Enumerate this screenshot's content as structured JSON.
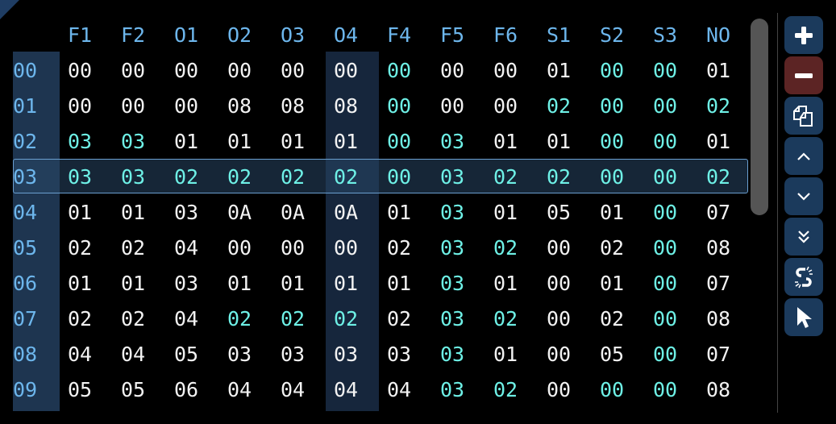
{
  "columns": [
    "F1",
    "F2",
    "O1",
    "O2",
    "O3",
    "O4",
    "F4",
    "F5",
    "F6",
    "S1",
    "S2",
    "S3",
    "NO"
  ],
  "selected_row": "03",
  "highlighted_column": "O4",
  "colors": {
    "header": "#6db6ec",
    "highlight": "#6ef0e6",
    "normal": "#f2f2f2",
    "remove_button": "#5c2424",
    "button": "#1b3a5c"
  },
  "rows": [
    {
      "id": "00",
      "values": [
        "00",
        "00",
        "00",
        "00",
        "00",
        "00",
        "00",
        "00",
        "00",
        "01",
        "00",
        "00",
        "01"
      ],
      "hl": [
        0,
        0,
        0,
        0,
        0,
        0,
        1,
        0,
        0,
        0,
        1,
        1,
        0
      ]
    },
    {
      "id": "01",
      "values": [
        "00",
        "00",
        "00",
        "08",
        "08",
        "08",
        "00",
        "00",
        "00",
        "02",
        "00",
        "00",
        "02"
      ],
      "hl": [
        0,
        0,
        0,
        0,
        0,
        0,
        1,
        0,
        0,
        1,
        1,
        1,
        1
      ]
    },
    {
      "id": "02",
      "values": [
        "03",
        "03",
        "01",
        "01",
        "01",
        "01",
        "00",
        "03",
        "01",
        "01",
        "00",
        "00",
        "01"
      ],
      "hl": [
        1,
        1,
        0,
        0,
        0,
        0,
        1,
        1,
        0,
        0,
        1,
        1,
        0
      ]
    },
    {
      "id": "03",
      "values": [
        "03",
        "03",
        "02",
        "02",
        "02",
        "02",
        "00",
        "03",
        "02",
        "02",
        "00",
        "00",
        "02"
      ],
      "hl": [
        1,
        1,
        1,
        1,
        1,
        1,
        1,
        1,
        1,
        1,
        1,
        1,
        1
      ]
    },
    {
      "id": "04",
      "values": [
        "01",
        "01",
        "03",
        "0A",
        "0A",
        "0A",
        "01",
        "03",
        "01",
        "05",
        "01",
        "00",
        "07"
      ],
      "hl": [
        0,
        0,
        0,
        0,
        0,
        0,
        0,
        1,
        0,
        0,
        0,
        1,
        0
      ]
    },
    {
      "id": "05",
      "values": [
        "02",
        "02",
        "04",
        "00",
        "00",
        "00",
        "02",
        "03",
        "02",
        "00",
        "02",
        "00",
        "08"
      ],
      "hl": [
        0,
        0,
        0,
        0,
        0,
        0,
        0,
        1,
        1,
        0,
        0,
        1,
        0
      ]
    },
    {
      "id": "06",
      "values": [
        "01",
        "01",
        "03",
        "01",
        "01",
        "01",
        "01",
        "03",
        "01",
        "00",
        "01",
        "00",
        "07"
      ],
      "hl": [
        0,
        0,
        0,
        0,
        0,
        0,
        0,
        1,
        0,
        0,
        0,
        1,
        0
      ]
    },
    {
      "id": "07",
      "values": [
        "02",
        "02",
        "04",
        "02",
        "02",
        "02",
        "02",
        "03",
        "02",
        "00",
        "02",
        "00",
        "08"
      ],
      "hl": [
        0,
        0,
        0,
        1,
        1,
        1,
        0,
        1,
        1,
        0,
        0,
        1,
        0
      ]
    },
    {
      "id": "08",
      "values": [
        "04",
        "04",
        "05",
        "03",
        "03",
        "03",
        "03",
        "03",
        "01",
        "00",
        "05",
        "00",
        "07"
      ],
      "hl": [
        0,
        0,
        0,
        0,
        0,
        0,
        0,
        1,
        0,
        0,
        0,
        1,
        0
      ]
    },
    {
      "id": "09",
      "values": [
        "05",
        "05",
        "06",
        "04",
        "04",
        "04",
        "04",
        "03",
        "02",
        "00",
        "00",
        "00",
        "08"
      ],
      "hl": [
        0,
        0,
        0,
        0,
        0,
        0,
        0,
        1,
        1,
        0,
        1,
        1,
        0
      ]
    }
  ],
  "toolbar": [
    {
      "name": "add-row-button",
      "icon": "plus-icon"
    },
    {
      "name": "remove-row-button",
      "icon": "minus-icon"
    },
    {
      "name": "duplicate-button",
      "icon": "copy-icon"
    },
    {
      "name": "move-up-button",
      "icon": "chevron-up-icon"
    },
    {
      "name": "move-down-button",
      "icon": "chevron-down-icon"
    },
    {
      "name": "jump-end-button",
      "icon": "double-chevron-down-icon"
    },
    {
      "name": "unlink-button",
      "icon": "broken-link-icon"
    },
    {
      "name": "select-tool-button",
      "icon": "cursor-icon"
    }
  ]
}
